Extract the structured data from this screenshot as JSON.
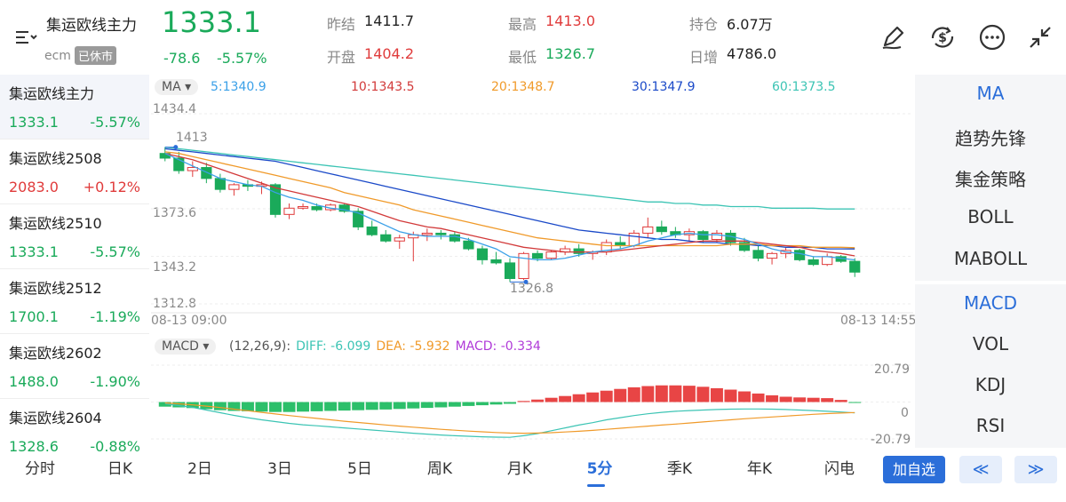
{
  "header": {
    "name": "集运欧线主力",
    "exchange": "ecm",
    "status": "已休市",
    "price": "1333.1",
    "change": "-78.6",
    "change_pct": "-5.57%",
    "prev_close_label": "昨结",
    "prev_close": "1411.7",
    "open_label": "开盘",
    "open": "1404.2",
    "high_label": "最高",
    "high": "1413.0",
    "low_label": "最低",
    "low": "1326.7",
    "oi_label": "持仓",
    "oi": "6.07万",
    "oi_chg_label": "日增",
    "oi_chg": "4786.0"
  },
  "icons": [
    "edit-pen-icon",
    "currency-exchange-icon",
    "more-icon",
    "collapse-icon",
    "sort-filter-icon"
  ],
  "contracts": [
    {
      "name": "集运欧线主力",
      "price": "1333.1",
      "pct": "-5.57%",
      "dir": "down"
    },
    {
      "name": "集运欧线2508",
      "price": "2083.0",
      "pct": "+0.12%",
      "dir": "up"
    },
    {
      "name": "集运欧线2510",
      "price": "1333.1",
      "pct": "-5.57%",
      "dir": "down"
    },
    {
      "name": "集运欧线2512",
      "price": "1700.1",
      "pct": "-1.19%",
      "dir": "down"
    },
    {
      "name": "集运欧线2602",
      "price": "1488.0",
      "pct": "-1.90%",
      "dir": "down"
    },
    {
      "name": "集运欧线2604",
      "price": "1328.6",
      "pct": "-0.88%",
      "dir": "down"
    }
  ],
  "ma": {
    "selector": "MA",
    "ma5": "5:1340.9",
    "ma10": "10:1343.5",
    "ma20": "20:1348.7",
    "ma30": "30:1347.9",
    "ma60": "60:1373.5",
    "colors": {
      "ma5": "#3aa0e8",
      "ma10": "#d23a3a",
      "ma20": "#f09a2a",
      "ma30": "#1a49c8",
      "ma60": "#3cc4b4"
    }
  },
  "price_axis": {
    "max": "1434.4",
    "mid1": "1373.6",
    "mid2": "1343.2",
    "min": "1312.8"
  },
  "time_axis": {
    "start": "08-13 09:00",
    "end": "08-13 14:55"
  },
  "annotations": {
    "high": "1413",
    "low": "1326.8"
  },
  "macd": {
    "selector": "MACD",
    "params": "(12,26,9):",
    "diff": "DIFF: -6.099",
    "dea": "DEA: -5.932",
    "macd": "MACD: -0.334",
    "axis_max": "20.79",
    "axis_zero": "0",
    "axis_min": "-20.79"
  },
  "indicators_main": [
    "MA",
    "趋势先锋",
    "集金策略",
    "BOLL",
    "MABOLL"
  ],
  "indicators_sub": [
    "MACD",
    "VOL",
    "KDJ",
    "RSI"
  ],
  "tabs": [
    "分时",
    "日K",
    "2日",
    "3日",
    "5日",
    "周K",
    "月K",
    "5分",
    "季K",
    "年K",
    "闪电"
  ],
  "selected_tab": "5分",
  "add_watch": "加自选",
  "prev": "≪",
  "next": "≫",
  "chart_data": {
    "type": "candlestick",
    "ylim": [
      1312.8,
      1434.4
    ],
    "candles": [
      [
        1409.0,
        1413.0,
        1404.0,
        1406.0
      ],
      [
        1406.0,
        1410.0,
        1396.0,
        1398.0
      ],
      [
        1398.0,
        1404.0,
        1394.0,
        1400.0
      ],
      [
        1400.0,
        1403.0,
        1390.0,
        1393.0
      ],
      [
        1393.0,
        1396.0,
        1384.0,
        1386.0
      ],
      [
        1386.0,
        1390.0,
        1382.0,
        1389.0
      ],
      [
        1389.0,
        1392.0,
        1385.0,
        1388.0
      ],
      [
        1388.0,
        1391.0,
        1383.0,
        1389.0
      ],
      [
        1389.0,
        1390.0,
        1368.0,
        1370.0
      ],
      [
        1370.0,
        1377.0,
        1367.0,
        1374.0
      ],
      [
        1374.0,
        1377.0,
        1373.0,
        1375.0
      ],
      [
        1375.0,
        1377.0,
        1372.0,
        1373.0
      ],
      [
        1373.0,
        1377.0,
        1372.0,
        1376.0
      ],
      [
        1376.0,
        1377.0,
        1371.0,
        1372.0
      ],
      [
        1372.0,
        1374.0,
        1360.0,
        1362.0
      ],
      [
        1362.0,
        1366.0,
        1356.0,
        1357.0
      ],
      [
        1357.0,
        1360.0,
        1352.0,
        1353.0
      ],
      [
        1353.0,
        1357.0,
        1348.0,
        1355.0
      ],
      [
        1355.0,
        1359.0,
        1340.0,
        1357.0
      ],
      [
        1357.0,
        1361.0,
        1353.0,
        1358.0
      ],
      [
        1358.0,
        1360.0,
        1354.0,
        1357.0
      ],
      [
        1357.0,
        1359.0,
        1352.0,
        1353.0
      ],
      [
        1353.0,
        1355.0,
        1347.0,
        1348.0
      ],
      [
        1348.0,
        1350.0,
        1338.0,
        1341.0
      ],
      [
        1341.0,
        1346.0,
        1338.0,
        1339.0
      ],
      [
        1339.0,
        1342.0,
        1326.8,
        1329.0
      ],
      [
        1329.0,
        1346.0,
        1328.0,
        1345.0
      ],
      [
        1345.0,
        1347.0,
        1340.0,
        1342.0
      ],
      [
        1342.0,
        1347.0,
        1341.0,
        1346.0
      ],
      [
        1346.0,
        1350.0,
        1344.0,
        1348.0
      ],
      [
        1348.0,
        1351.0,
        1343.0,
        1345.0
      ],
      [
        1345.0,
        1347.0,
        1341.0,
        1346.0
      ],
      [
        1346.0,
        1354.0,
        1344.0,
        1352.0
      ],
      [
        1352.0,
        1356.0,
        1348.0,
        1350.0
      ],
      [
        1350.0,
        1360.0,
        1349.0,
        1358.0
      ],
      [
        1358.0,
        1368.0,
        1355.0,
        1362.0
      ],
      [
        1362.0,
        1366.0,
        1357.0,
        1359.0
      ],
      [
        1359.0,
        1362.0,
        1355.0,
        1357.0
      ],
      [
        1357.0,
        1361.0,
        1353.0,
        1359.0
      ],
      [
        1359.0,
        1360.0,
        1352.0,
        1354.0
      ],
      [
        1354.0,
        1360.0,
        1352.0,
        1358.0
      ],
      [
        1358.0,
        1360.0,
        1350.0,
        1352.0
      ],
      [
        1352.0,
        1355.0,
        1346.0,
        1347.0
      ],
      [
        1347.0,
        1350.0,
        1340.0,
        1342.0
      ],
      [
        1342.0,
        1346.0,
        1338.0,
        1345.0
      ],
      [
        1345.0,
        1349.0,
        1342.0,
        1347.0
      ],
      [
        1347.0,
        1348.0,
        1340.0,
        1341.0
      ],
      [
        1341.0,
        1343.0,
        1337.0,
        1338.0
      ],
      [
        1338.0,
        1345.0,
        1337.0,
        1343.0
      ],
      [
        1343.0,
        1344.0,
        1339.0,
        1340.0
      ],
      [
        1340.0,
        1342.0,
        1330.0,
        1333.1
      ]
    ],
    "ma5": [
      1409,
      1405,
      1401,
      1397,
      1393,
      1391,
      1389,
      1388,
      1384,
      1381,
      1379,
      1376,
      1374,
      1373,
      1371,
      1367,
      1363,
      1359,
      1357,
      1356,
      1356,
      1356,
      1354,
      1351,
      1348,
      1343,
      1342,
      1341,
      1341,
      1342,
      1344,
      1346,
      1347,
      1348,
      1350,
      1353,
      1355,
      1357,
      1358,
      1357,
      1357,
      1356,
      1354,
      1351,
      1348,
      1346,
      1345,
      1343,
      1343,
      1342,
      1340.9
    ],
    "ma10": [
      1409,
      1407,
      1405,
      1402,
      1399,
      1396,
      1393,
      1390,
      1387,
      1385,
      1383,
      1381,
      1379,
      1377,
      1375,
      1372,
      1369,
      1366,
      1364,
      1362,
      1361,
      1359,
      1357,
      1355,
      1353,
      1351,
      1349,
      1348,
      1347,
      1346,
      1346,
      1346,
      1346,
      1347,
      1348,
      1349,
      1350,
      1351,
      1352,
      1353,
      1353,
      1353,
      1353,
      1352,
      1351,
      1350,
      1349,
      1347,
      1346,
      1345,
      1343.5
    ],
    "ma20": [
      1410,
      1409,
      1407,
      1405,
      1403,
      1401,
      1399,
      1397,
      1395,
      1393,
      1391,
      1389,
      1387,
      1384,
      1382,
      1380,
      1378,
      1376,
      1373,
      1371,
      1369,
      1367,
      1365,
      1363,
      1361,
      1359,
      1357,
      1355,
      1354,
      1353,
      1352,
      1351,
      1350,
      1350,
      1350,
      1350,
      1350,
      1350,
      1350,
      1350,
      1350,
      1351,
      1351,
      1351,
      1350,
      1350,
      1350,
      1349,
      1349,
      1349,
      1348.7
    ],
    "ma30": [
      1412,
      1411,
      1410,
      1409,
      1408,
      1407,
      1406,
      1405,
      1404,
      1402,
      1400,
      1398,
      1396,
      1394,
      1392,
      1390,
      1388,
      1386,
      1384,
      1382,
      1380,
      1378,
      1376,
      1374,
      1372,
      1370,
      1368,
      1366,
      1364,
      1362,
      1360,
      1359,
      1358,
      1357,
      1356,
      1355,
      1354,
      1354,
      1353,
      1352,
      1352,
      1351,
      1351,
      1350,
      1350,
      1349,
      1349,
      1349,
      1348,
      1348,
      1347.9
    ],
    "ma60": [
      1413,
      1412,
      1411,
      1410,
      1409,
      1408,
      1407,
      1406,
      1405,
      1404,
      1403,
      1402,
      1401,
      1400,
      1399,
      1398,
      1397,
      1396,
      1395,
      1394,
      1393,
      1392,
      1391,
      1390,
      1389,
      1388,
      1387,
      1386,
      1385,
      1384,
      1383,
      1382,
      1381,
      1380,
      1379,
      1378,
      1378,
      1377,
      1377,
      1376,
      1376,
      1375,
      1375,
      1375,
      1374,
      1374,
      1374,
      1374,
      1373.5,
      1373.5,
      1373.5
    ],
    "macd_ylim": [
      -20.79,
      20.79
    ],
    "macd_bars": [
      -2.6,
      -3.0,
      -3.4,
      -4.0,
      -4.6,
      -5.0,
      -5.2,
      -5.4,
      -5.6,
      -5.6,
      -5.4,
      -5.2,
      -5.0,
      -4.8,
      -4.6,
      -4.4,
      -4.2,
      -3.9,
      -3.6,
      -3.3,
      -3.0,
      -2.6,
      -2.2,
      -1.8,
      -1.4,
      -1.0,
      0.6,
      1.4,
      2.4,
      3.4,
      4.4,
      5.4,
      6.4,
      7.4,
      8.3,
      9.0,
      9.4,
      9.4,
      9.2,
      8.6,
      7.8,
      7.0,
      6.0,
      4.8,
      3.8,
      3.0,
      2.6,
      2.4,
      2.2,
      1.2,
      -0.334
    ],
    "diff": [
      -1,
      -2,
      -3,
      -4.5,
      -6,
      -7.5,
      -8.8,
      -10,
      -11,
      -12,
      -12.8,
      -13.4,
      -14,
      -14.6,
      -15.2,
      -15.8,
      -16.4,
      -17,
      -17.6,
      -18.1,
      -18.6,
      -19,
      -19.3,
      -19.6,
      -19.8,
      -19.9,
      -19,
      -17.8,
      -16.2,
      -14.6,
      -13,
      -11.6,
      -10,
      -8.8,
      -7.6,
      -6.6,
      -5.8,
      -5.2,
      -4.8,
      -4.5,
      -4.2,
      -4.0,
      -3.9,
      -3.9,
      -4.0,
      -4.2,
      -4.5,
      -4.8,
      -5.2,
      -5.6,
      -6.099
    ],
    "dea": [
      -0.5,
      -1,
      -1.6,
      -2.3,
      -3.1,
      -4,
      -4.9,
      -5.8,
      -6.7,
      -7.6,
      -8.4,
      -9.2,
      -10,
      -10.8,
      -11.5,
      -12.2,
      -12.9,
      -13.6,
      -14.2,
      -14.8,
      -15.4,
      -15.9,
      -16.4,
      -16.8,
      -17.2,
      -17.5,
      -17.6,
      -17.5,
      -17.3,
      -16.9,
      -16.5,
      -16,
      -15.4,
      -14.8,
      -14.2,
      -13.6,
      -13,
      -12.4,
      -11.8,
      -11.2,
      -10.6,
      -10,
      -9.4,
      -8.9,
      -8.4,
      -7.9,
      -7.4,
      -6.9,
      -6.5,
      -6.2,
      -5.932
    ]
  }
}
